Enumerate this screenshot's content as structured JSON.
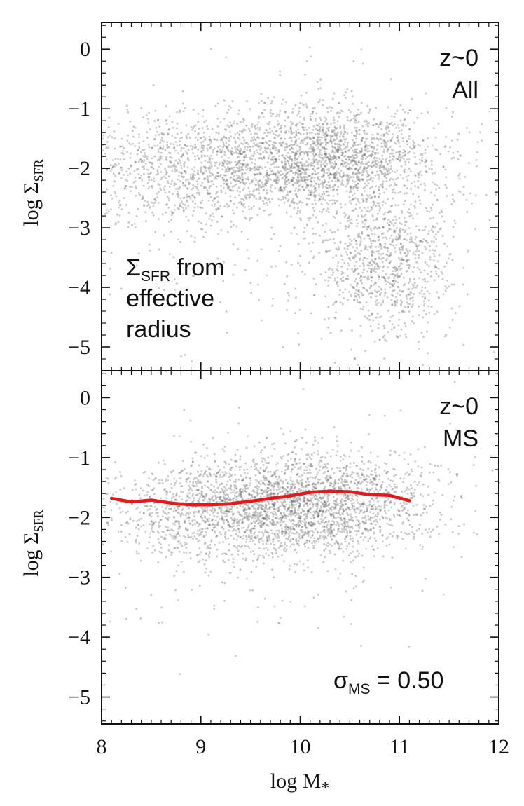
{
  "chart_data": [
    {
      "type": "scatter",
      "panel": "top",
      "xlim": [
        8,
        12
      ],
      "ylim": [
        -5.4,
        0.45
      ],
      "ylabel": {
        "main": "log  Σ",
        "sub": "SFR"
      },
      "yticks": [
        0,
        -1,
        -2,
        -3,
        -4,
        -5
      ],
      "ytick_labels": [
        "0",
        "−1",
        "−2",
        "−3",
        "−4",
        "−5"
      ],
      "annotations": {
        "redshift": "z~0",
        "sample": "All",
        "note_line1_main": "Σ",
        "note_line1_sub": "SFR",
        "note_line1_rest": " from",
        "note_line2": "effective",
        "note_line3": "radius"
      },
      "point_color": "#5a5a5a",
      "components": [
        {
          "x_mean": 10.3,
          "y_mean": -1.8,
          "x_sd": 0.55,
          "y_sd": 0.45,
          "weight": 0.42
        },
        {
          "x_mean": 9.0,
          "y_mean": -2.0,
          "x_sd": 0.6,
          "y_sd": 0.45,
          "weight": 0.28
        },
        {
          "x_mean": 10.85,
          "y_mean": -3.6,
          "x_sd": 0.35,
          "y_sd": 0.6,
          "weight": 0.22
        },
        {
          "x_mean": 9.8,
          "y_mean": -2.8,
          "x_sd": 1.0,
          "y_sd": 1.2,
          "weight": 0.08
        }
      ]
    },
    {
      "type": "scatter",
      "panel": "bottom",
      "xlim": [
        8,
        12
      ],
      "ylim": [
        -5.45,
        0.45
      ],
      "xlabel": {
        "main": "log  M",
        "sub": "*"
      },
      "ylabel": {
        "main": "log  Σ",
        "sub": "SFR"
      },
      "xticks": [
        8,
        9,
        10,
        11,
        12
      ],
      "xtick_labels": [
        "8",
        "9",
        "10",
        "11",
        "12"
      ],
      "yticks": [
        0,
        -1,
        -2,
        -3,
        -4,
        -5
      ],
      "ytick_labels": [
        "0",
        "−1",
        "−2",
        "−3",
        "−4",
        "−5"
      ],
      "annotations": {
        "redshift": "z~0",
        "sample": "MS",
        "sigma_main": "σ",
        "sigma_sub": "MS",
        "sigma_value": " = 0.50"
      },
      "point_color": "#5a5a5a",
      "line_color": "#e31a1c",
      "components": [
        {
          "x_mean": 10.1,
          "y_mean": -1.75,
          "x_sd": 0.6,
          "y_sd": 0.42,
          "weight": 0.6
        },
        {
          "x_mean": 9.2,
          "y_mean": -1.85,
          "x_sd": 0.6,
          "y_sd": 0.42,
          "weight": 0.32
        },
        {
          "x_mean": 9.8,
          "y_mean": -2.2,
          "x_sd": 1.0,
          "y_sd": 0.9,
          "weight": 0.08
        }
      ],
      "median_line": {
        "x": [
          8.1,
          8.3,
          8.5,
          8.7,
          8.9,
          9.1,
          9.3,
          9.5,
          9.7,
          9.9,
          10.1,
          10.3,
          10.5,
          10.7,
          10.9,
          11.1
        ],
        "y": [
          -1.68,
          -1.74,
          -1.71,
          -1.76,
          -1.79,
          -1.79,
          -1.77,
          -1.73,
          -1.68,
          -1.64,
          -1.58,
          -1.56,
          -1.57,
          -1.62,
          -1.63,
          -1.72
        ]
      }
    }
  ]
}
